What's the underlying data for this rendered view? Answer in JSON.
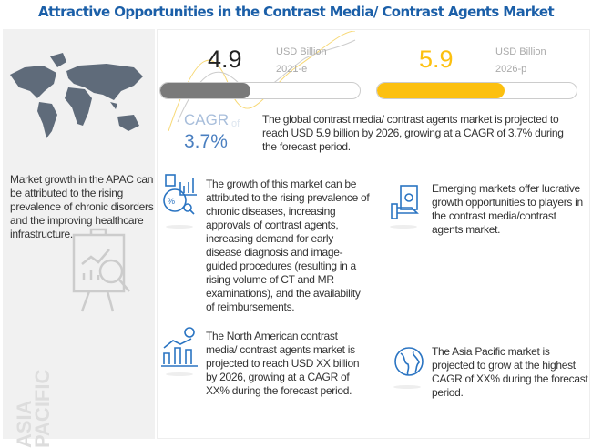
{
  "title": "Attractive Opportunities in the Contrast Media/ Contrast Agents Market",
  "region_note": "Market growth in the APAC can be attributed to the rising prevalence of chronic disorders and the improving healthcare infrastructure.",
  "region_label": [
    "ASIA",
    "PACIFIC"
  ],
  "metrics": [
    {
      "value": "4.9",
      "unit": "USD Billion",
      "year": "2021-e",
      "fill_fraction": 0.45,
      "color": "#7a7a7a"
    },
    {
      "value": "5.9",
      "unit": "USD Billion",
      "year": "2026-p",
      "fill_fraction": 0.64,
      "color": "#fcc010"
    }
  ],
  "cagr": {
    "label": "CAGR",
    "of": "of",
    "value": "3.7%",
    "color": "#4a7fc0"
  },
  "summary": "The global contrast media/ contrast agents market is projected to reach USD 5.9 billion by 2026, growing at a CAGR of 3.7% during the forecast period.",
  "insights": [
    {
      "icon": "analytics-icon",
      "text": "The growth of this market can be attributed to the rising prevalence of chronic diseases, increasing approvals of contrast agents, increasing demand for early disease diagnosis and image-guided procedures (resulting in a rising volume of CT and MR examinations), and the availability of reimbursements."
    },
    {
      "icon": "money-hand-icon",
      "text": "Emerging markets offer lucrative growth opportunities to players in the contrast media/contrast agents market."
    },
    {
      "icon": "growth-chart-icon",
      "text": "The North American contrast media/ contrast agents market is projected to reach USD XX billion by 2026, growing at a CAGR of XX% during the forecast period."
    },
    {
      "icon": "globe-icon",
      "text": "The Asia Pacific market is projected to grow at the highest CAGR of XX% during the forecast period."
    }
  ],
  "accent": "#1b5fa8"
}
